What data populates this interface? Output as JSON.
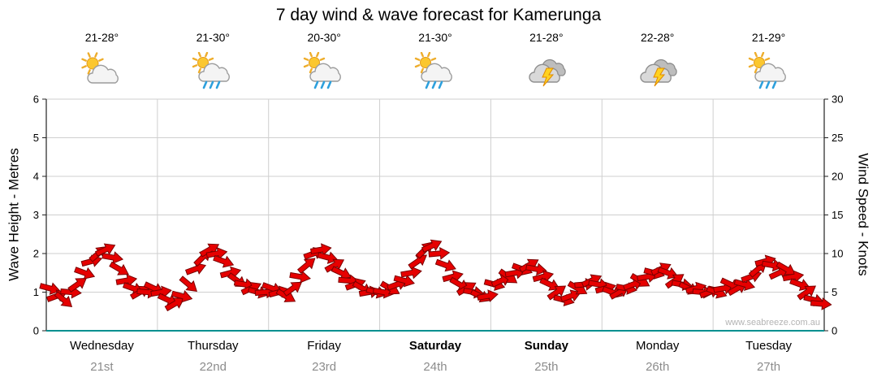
{
  "title": "7 day wind & wave forecast for Kamerunga",
  "watermark": "www.seabreeze.com.au",
  "days": [
    {
      "name": "Wednesday",
      "date": "21st",
      "temp": "21-28°",
      "icon": "sun-cloud",
      "bold": false
    },
    {
      "name": "Thursday",
      "date": "22nd",
      "temp": "21-30°",
      "icon": "sun-cloud-rain",
      "bold": false
    },
    {
      "name": "Friday",
      "date": "23rd",
      "temp": "20-30°",
      "icon": "sun-cloud-rain",
      "bold": false
    },
    {
      "name": "Saturday",
      "date": "24th",
      "temp": "21-30°",
      "icon": "sun-cloud-rain",
      "bold": true
    },
    {
      "name": "Sunday",
      "date": "25th",
      "temp": "21-28°",
      "icon": "storm",
      "bold": true
    },
    {
      "name": "Monday",
      "date": "26th",
      "temp": "22-28°",
      "icon": "storm",
      "bold": false
    },
    {
      "name": "Tuesday",
      "date": "27th",
      "temp": "21-29°",
      "icon": "sun-cloud-rain",
      "bold": false
    }
  ],
  "chart_data": {
    "type": "scatter",
    "marker": "red-wind-arrow",
    "title": "7 day wind & wave forecast for Kamerunga",
    "left_axis": {
      "label": "Wave Height - Metres",
      "ticks": [
        0,
        1,
        2,
        3,
        4,
        5,
        6
      ],
      "range": [
        0,
        6
      ]
    },
    "right_axis": {
      "label": "Wind Speed - Knots",
      "ticks": [
        0,
        5,
        10,
        15,
        20,
        25,
        30
      ],
      "range": [
        0,
        30
      ]
    },
    "grid": true,
    "samples_per_day": 16,
    "series": [
      {
        "name": "Wind speed (knots)",
        "values": [
          5.5,
          4.5,
          4,
          5,
          6,
          7.5,
          9,
          10,
          10.5,
          9.5,
          8,
          6.5,
          5.5,
          5,
          5,
          5.5,
          5,
          4,
          3.5,
          4.5,
          6,
          8,
          9.5,
          10.5,
          10,
          9,
          7.5,
          6.5,
          6,
          5.5,
          5,
          5,
          5.5,
          5,
          4.5,
          5.5,
          7,
          8.5,
          10,
          10.5,
          9.5,
          8.5,
          7.5,
          6.5,
          6,
          5.5,
          5,
          5,
          5,
          5.5,
          6,
          6.5,
          7.5,
          9,
          10.5,
          11,
          10,
          8.5,
          7,
          6,
          5.5,
          5,
          4.5,
          4.5,
          6,
          6.5,
          7,
          7.5,
          8,
          8.5,
          8,
          7,
          6,
          5,
          4,
          4.5,
          5.5,
          6,
          6.5,
          6,
          5.5,
          5,
          5,
          5.5,
          6,
          6.5,
          7,
          7.5,
          8,
          7.5,
          6.5,
          6,
          5.5,
          5.5,
          5,
          5,
          5,
          5.5,
          6,
          5.5,
          6,
          7,
          8,
          9,
          8.5,
          7.5,
          8,
          7,
          6,
          5,
          4,
          3.5
        ],
        "directions": [
          15,
          -20,
          40,
          5,
          -35,
          20,
          -15,
          -40,
          -25,
          10,
          30,
          -10,
          20,
          -30,
          5,
          25,
          -10,
          25,
          -30,
          15,
          40,
          -20,
          -45,
          -30,
          -10,
          20,
          -15,
          35,
          10,
          -25,
          15,
          -5,
          20,
          -15,
          30,
          -35,
          10,
          -40,
          -20,
          -10,
          15,
          -30,
          25,
          5,
          -20,
          30,
          -10,
          15,
          10,
          30,
          -20,
          15,
          -10,
          -35,
          -45,
          -25,
          -5,
          20,
          -15,
          30,
          -30,
          10,
          25,
          -10,
          15,
          -25,
          35,
          -10,
          20,
          -30,
          10,
          -15,
          25,
          -35,
          15,
          -20,
          30,
          -5,
          -25,
          10,
          -15,
          20,
          -30,
          10,
          -20,
          30,
          -10,
          15,
          -25,
          20,
          -35,
          10,
          25,
          -15,
          5,
          -20,
          20,
          -10,
          25,
          -30,
          15,
          -20,
          -40,
          -15,
          10,
          -25,
          30,
          -10,
          20,
          -35,
          15,
          5
        ]
      }
    ]
  },
  "colors": {
    "arrow": "#e60000",
    "arrow_outline": "#7a0000",
    "grid": "#cfcfcf",
    "axis": "#222222",
    "baseline": "#009090",
    "date_text": "#8c8c8c"
  }
}
